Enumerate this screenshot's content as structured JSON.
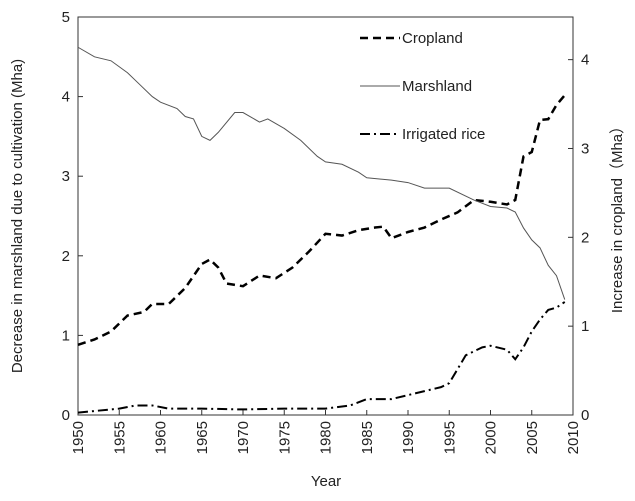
{
  "chart_data": {
    "type": "line",
    "xlabel": "Year",
    "ylabel": "Decrease in marshland due to cultivation (Mha)",
    "y2label": "Increase in cropland（Mha）",
    "xlim": [
      1950,
      2010
    ],
    "xticks": [
      1950,
      1955,
      1960,
      1965,
      1970,
      1975,
      1980,
      1985,
      1990,
      1995,
      2000,
      2005,
      2010
    ],
    "ylim": [
      0,
      5
    ],
    "yticks": [
      0,
      1,
      2,
      3,
      4,
      5
    ],
    "y2lim": [
      0,
      4.48
    ],
    "y2ticks": [
      0,
      1,
      2,
      3,
      4
    ],
    "legend": "upper right",
    "series": [
      {
        "name": "Cropland",
        "color": "#000000",
        "style": "dashed",
        "axis": "y2",
        "x": [
          1950,
          1952,
          1954,
          1956,
          1958,
          1959,
          1961,
          1963,
          1965,
          1966,
          1967,
          1968,
          1970,
          1972,
          1974,
          1976,
          1978,
          1980,
          1982,
          1984,
          1986,
          1987,
          1988,
          1990,
          1992,
          1994,
          1996,
          1998,
          2000,
          2002,
          2003,
          2004,
          2005,
          2006,
          2007,
          2008,
          2009
        ],
        "values": [
          0.79,
          0.85,
          0.94,
          1.12,
          1.16,
          1.25,
          1.25,
          1.43,
          1.7,
          1.75,
          1.66,
          1.48,
          1.45,
          1.57,
          1.54,
          1.66,
          1.84,
          2.04,
          2.02,
          2.08,
          2.11,
          2.12,
          1.99,
          2.06,
          2.11,
          2.2,
          2.28,
          2.42,
          2.4,
          2.37,
          2.42,
          2.91,
          2.96,
          3.32,
          3.33,
          3.49,
          3.6
        ]
      },
      {
        "name": "Marshland",
        "color": "#555555",
        "style": "solid",
        "x": [
          1950,
          1952,
          1954,
          1956,
          1957,
          1959,
          1960,
          1962,
          1963,
          1964,
          1965,
          1966,
          1967,
          1969,
          1970,
          1972,
          1973,
          1975,
          1977,
          1979,
          1980,
          1982,
          1984,
          1985,
          1988,
          1990,
          1992,
          1995,
          1998,
          2000,
          2002,
          2003,
          2004,
          2005,
          2006,
          2007,
          2008,
          2009
        ],
        "values": [
          4.62,
          4.5,
          4.45,
          4.3,
          4.2,
          4.0,
          3.93,
          3.85,
          3.75,
          3.72,
          3.5,
          3.45,
          3.55,
          3.8,
          3.8,
          3.68,
          3.72,
          3.6,
          3.45,
          3.25,
          3.18,
          3.15,
          3.05,
          2.98,
          2.95,
          2.92,
          2.85,
          2.85,
          2.7,
          2.62,
          2.6,
          2.55,
          2.35,
          2.2,
          2.1,
          1.88,
          1.75,
          1.45
        ]
      },
      {
        "name": "Irrigated rice",
        "color": "#000000",
        "style": "dashdot",
        "x": [
          1950,
          1952,
          1955,
          1957,
          1959,
          1961,
          1965,
          1970,
          1975,
          1980,
          1983,
          1985,
          1988,
          1990,
          1992,
          1994,
          1995,
          1997,
          1999,
          2000,
          2002,
          2003,
          2004,
          2005,
          2006,
          2007,
          2008,
          2009
        ],
        "values": [
          0.03,
          0.05,
          0.08,
          0.12,
          0.12,
          0.08,
          0.08,
          0.07,
          0.08,
          0.08,
          0.12,
          0.2,
          0.2,
          0.25,
          0.3,
          0.35,
          0.4,
          0.75,
          0.85,
          0.87,
          0.82,
          0.7,
          0.85,
          1.05,
          1.2,
          1.32,
          1.35,
          1.42
        ]
      }
    ]
  }
}
